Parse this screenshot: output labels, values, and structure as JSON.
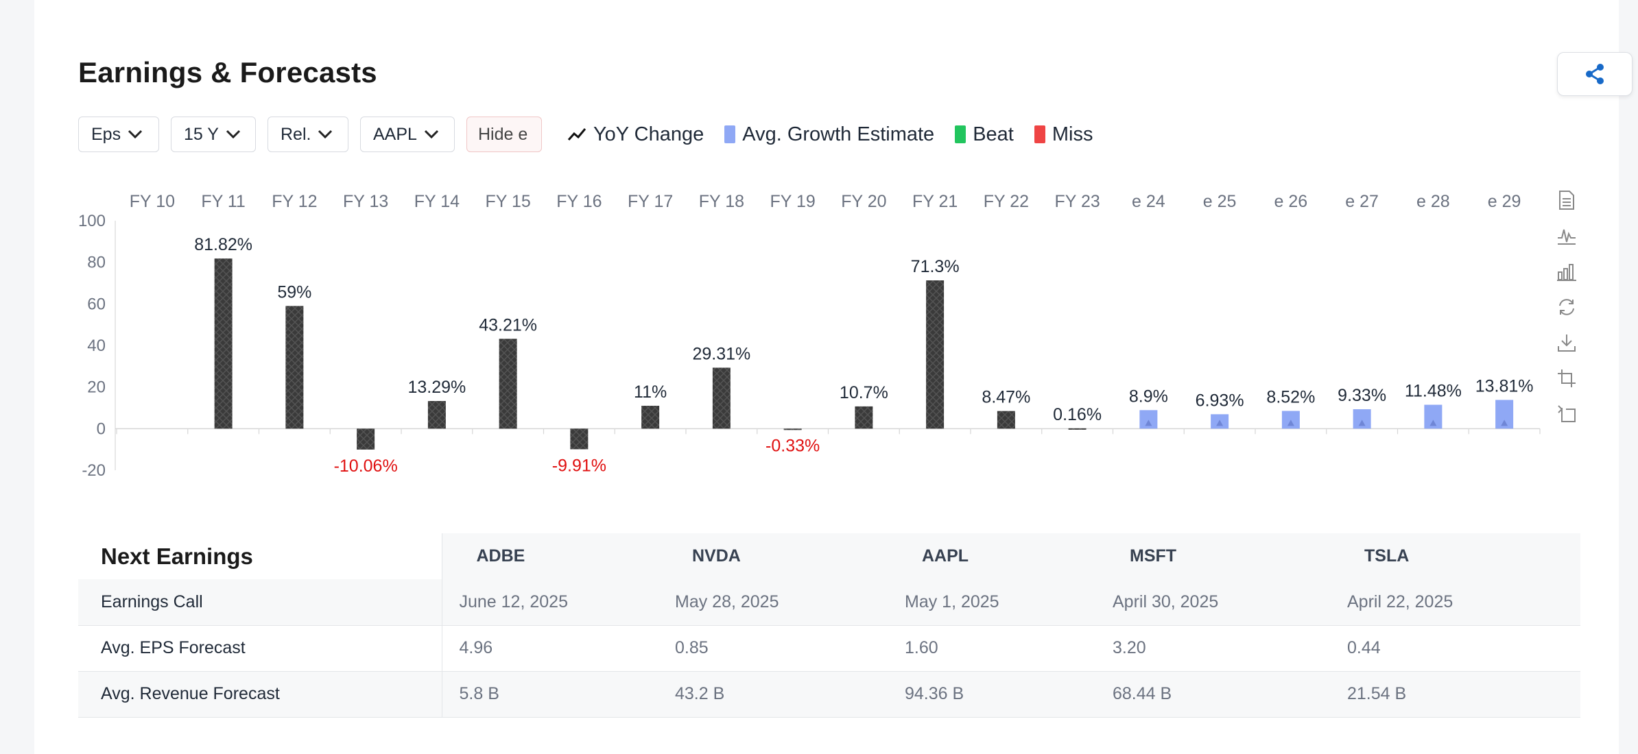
{
  "title": "Earnings & Forecasts",
  "toolbar": {
    "metric": "Eps",
    "range": "15 Y",
    "mode": "Rel.",
    "ticker": "AAPL",
    "hide_label": "Hide e"
  },
  "legend": {
    "yoy": "YoY Change",
    "avg_growth": "Avg. Growth Estimate",
    "beat": "Beat",
    "miss": "Miss"
  },
  "colors": {
    "bar_actual": "#3a3a3a",
    "bar_estimate": "#8fa8f5",
    "beat": "#22c55e",
    "miss": "#ef4444",
    "negative_label": "#e01010",
    "share": "#1769c8"
  },
  "chart_data": {
    "type": "bar",
    "categories": [
      "FY 10",
      "FY 11",
      "FY 12",
      "FY 13",
      "FY 14",
      "FY 15",
      "FY 16",
      "FY 17",
      "FY 18",
      "FY 19",
      "FY 20",
      "FY 21",
      "FY 22",
      "FY 23",
      "e 24",
      "e 25",
      "e 26",
      "e 27",
      "e 28",
      "e 29"
    ],
    "values": [
      null,
      81.82,
      59,
      -10.06,
      13.29,
      43.21,
      -9.91,
      11,
      29.31,
      -0.33,
      10.7,
      71.3,
      8.47,
      0.16,
      8.9,
      6.93,
      8.52,
      9.33,
      11.48,
      13.81
    ],
    "labels": [
      "",
      "81.82%",
      "59%",
      "-10.06%",
      "13.29%",
      "43.21%",
      "-9.91%",
      "11%",
      "29.31%",
      "-0.33%",
      "10.7%",
      "71.3%",
      "8.47%",
      "0.16%",
      "8.9%",
      "6.93%",
      "8.52%",
      "9.33%",
      "11.48%",
      "13.81%"
    ],
    "estimate": [
      false,
      false,
      false,
      false,
      false,
      false,
      false,
      false,
      false,
      false,
      false,
      false,
      false,
      false,
      true,
      true,
      true,
      true,
      true,
      true
    ],
    "ylim": [
      -20,
      100
    ],
    "yticks": [
      100,
      80,
      60,
      40,
      20,
      0,
      -20
    ],
    "xlabel": "",
    "ylabel": "",
    "grid": false
  },
  "side_tools": [
    "data-view-icon",
    "line-chart-icon",
    "bar-chart-icon",
    "refresh-icon",
    "download-icon",
    "zoom-icon",
    "zoom-reset-icon"
  ],
  "next_earnings": {
    "heading": "Next Earnings",
    "tickers": [
      "ADBE",
      "NVDA",
      "AAPL",
      "MSFT",
      "TSLA"
    ],
    "rows": [
      {
        "label": "Earnings Call",
        "values": [
          "June 12, 2025",
          "May 28, 2025",
          "May 1, 2025",
          "April 30, 2025",
          "April 22, 2025"
        ]
      },
      {
        "label": "Avg. EPS Forecast",
        "values": [
          "4.96",
          "0.85",
          "1.60",
          "3.20",
          "0.44"
        ]
      },
      {
        "label": "Avg. Revenue Forecast",
        "values": [
          "5.8 B",
          "43.2 B",
          "94.36 B",
          "68.44 B",
          "21.54 B"
        ]
      }
    ]
  }
}
